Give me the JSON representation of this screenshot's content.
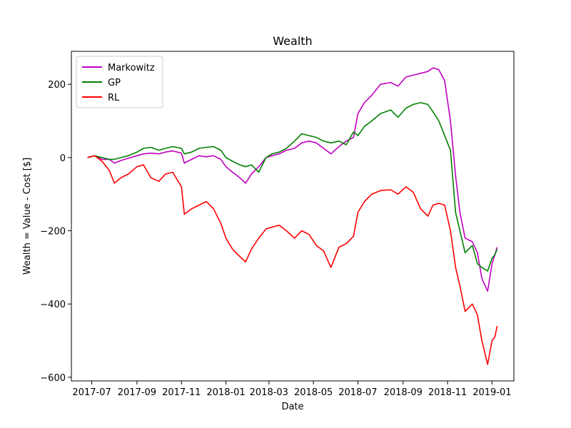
{
  "chart_data": {
    "type": "line",
    "title": "Wealth",
    "xlabel": "Date",
    "ylabel": "Wealth = Value - Cost [$]",
    "x_tick_labels": [
      "2017-07",
      "2017-09",
      "2017-11",
      "2018-01",
      "2018-03",
      "2018-05",
      "2018-07",
      "2018-09",
      "2018-11",
      "2019-01"
    ],
    "y_ticks": [
      200,
      0,
      -200,
      -400,
      -600
    ],
    "y_tick_labels": [
      "200",
      "0",
      "−200",
      "−400",
      "−600"
    ],
    "xlim": [
      "2017-06-03",
      "2019-01-31"
    ],
    "ylim": [
      -610,
      290
    ],
    "legend_position": "top-left",
    "series": [
      {
        "name": "Markowitz",
        "color": "#bf00bf",
        "points": [
          [
            "2017-06-25",
            0
          ],
          [
            "2017-07-05",
            5
          ],
          [
            "2017-07-15",
            -5
          ],
          [
            "2017-07-25",
            -5
          ],
          [
            "2017-08-01",
            -15
          ],
          [
            "2017-08-10",
            -8
          ],
          [
            "2017-08-20",
            -2
          ],
          [
            "2017-09-01",
            5
          ],
          [
            "2017-09-10",
            10
          ],
          [
            "2017-09-20",
            12
          ],
          [
            "2017-10-01",
            10
          ],
          [
            "2017-10-10",
            15
          ],
          [
            "2017-10-20",
            18
          ],
          [
            "2017-11-01",
            12
          ],
          [
            "2017-11-05",
            -15
          ],
          [
            "2017-11-15",
            -5
          ],
          [
            "2017-11-25",
            5
          ],
          [
            "2017-12-05",
            2
          ],
          [
            "2017-12-15",
            5
          ],
          [
            "2017-12-25",
            -5
          ],
          [
            "2018-01-01",
            -25
          ],
          [
            "2018-01-10",
            -40
          ],
          [
            "2018-01-20",
            -55
          ],
          [
            "2018-01-28",
            -70
          ],
          [
            "2018-02-05",
            -45
          ],
          [
            "2018-02-15",
            -25
          ],
          [
            "2018-02-25",
            0
          ],
          [
            "2018-03-05",
            5
          ],
          [
            "2018-03-15",
            10
          ],
          [
            "2018-03-25",
            20
          ],
          [
            "2018-04-05",
            25
          ],
          [
            "2018-04-15",
            40
          ],
          [
            "2018-04-25",
            45
          ],
          [
            "2018-05-05",
            40
          ],
          [
            "2018-05-15",
            25
          ],
          [
            "2018-05-25",
            10
          ],
          [
            "2018-06-05",
            30
          ],
          [
            "2018-06-15",
            45
          ],
          [
            "2018-06-25",
            55
          ],
          [
            "2018-07-01",
            120
          ],
          [
            "2018-07-10",
            150
          ],
          [
            "2018-07-20",
            170
          ],
          [
            "2018-08-01",
            200
          ],
          [
            "2018-08-15",
            205
          ],
          [
            "2018-08-25",
            195
          ],
          [
            "2018-09-05",
            220
          ],
          [
            "2018-09-15",
            225
          ],
          [
            "2018-09-25",
            230
          ],
          [
            "2018-10-05",
            235
          ],
          [
            "2018-10-12",
            245
          ],
          [
            "2018-10-20",
            240
          ],
          [
            "2018-10-28",
            210
          ],
          [
            "2018-11-05",
            100
          ],
          [
            "2018-11-12",
            -50
          ],
          [
            "2018-11-18",
            -150
          ],
          [
            "2018-11-25",
            -220
          ],
          [
            "2018-12-05",
            -230
          ],
          [
            "2018-12-12",
            -260
          ],
          [
            "2018-12-18",
            -330
          ],
          [
            "2018-12-26",
            -365
          ],
          [
            "2019-01-01",
            -290
          ],
          [
            "2019-01-05",
            -265
          ],
          [
            "2019-01-08",
            -245
          ]
        ]
      },
      {
        "name": "GP",
        "color": "#008000",
        "points": [
          [
            "2017-06-25",
            0
          ],
          [
            "2017-07-05",
            5
          ],
          [
            "2017-07-15",
            0
          ],
          [
            "2017-07-25",
            -5
          ],
          [
            "2017-08-01",
            -5
          ],
          [
            "2017-08-10",
            0
          ],
          [
            "2017-08-20",
            5
          ],
          [
            "2017-09-01",
            15
          ],
          [
            "2017-09-10",
            25
          ],
          [
            "2017-09-20",
            28
          ],
          [
            "2017-10-01",
            20
          ],
          [
            "2017-10-10",
            25
          ],
          [
            "2017-10-20",
            30
          ],
          [
            "2017-11-01",
            25
          ],
          [
            "2017-11-05",
            10
          ],
          [
            "2017-11-15",
            15
          ],
          [
            "2017-11-25",
            25
          ],
          [
            "2017-12-05",
            28
          ],
          [
            "2017-12-15",
            30
          ],
          [
            "2017-12-25",
            20
          ],
          [
            "2018-01-01",
            0
          ],
          [
            "2018-01-10",
            -10
          ],
          [
            "2018-01-20",
            -20
          ],
          [
            "2018-01-28",
            -25
          ],
          [
            "2018-02-05",
            -20
          ],
          [
            "2018-02-15",
            -40
          ],
          [
            "2018-02-25",
            0
          ],
          [
            "2018-03-05",
            10
          ],
          [
            "2018-03-15",
            15
          ],
          [
            "2018-03-25",
            25
          ],
          [
            "2018-04-05",
            45
          ],
          [
            "2018-04-15",
            65
          ],
          [
            "2018-04-25",
            60
          ],
          [
            "2018-05-05",
            55
          ],
          [
            "2018-05-15",
            45
          ],
          [
            "2018-05-25",
            40
          ],
          [
            "2018-06-05",
            45
          ],
          [
            "2018-06-15",
            35
          ],
          [
            "2018-06-25",
            70
          ],
          [
            "2018-07-01",
            60
          ],
          [
            "2018-07-10",
            85
          ],
          [
            "2018-07-20",
            100
          ],
          [
            "2018-08-01",
            120
          ],
          [
            "2018-08-15",
            130
          ],
          [
            "2018-08-25",
            110
          ],
          [
            "2018-09-05",
            135
          ],
          [
            "2018-09-15",
            145
          ],
          [
            "2018-09-25",
            150
          ],
          [
            "2018-10-05",
            145
          ],
          [
            "2018-10-12",
            125
          ],
          [
            "2018-10-20",
            100
          ],
          [
            "2018-10-28",
            60
          ],
          [
            "2018-11-05",
            20
          ],
          [
            "2018-11-12",
            -150
          ],
          [
            "2018-11-18",
            -200
          ],
          [
            "2018-11-25",
            -260
          ],
          [
            "2018-12-05",
            -240
          ],
          [
            "2018-12-12",
            -290
          ],
          [
            "2018-12-18",
            -300
          ],
          [
            "2018-12-26",
            -310
          ],
          [
            "2019-01-01",
            -275
          ],
          [
            "2019-01-05",
            -265
          ],
          [
            "2019-01-08",
            -250
          ]
        ]
      },
      {
        "name": "RL",
        "color": "#ff0000",
        "points": [
          [
            "2017-06-25",
            0
          ],
          [
            "2017-07-05",
            5
          ],
          [
            "2017-07-15",
            -10
          ],
          [
            "2017-07-25",
            -35
          ],
          [
            "2017-08-01",
            -70
          ],
          [
            "2017-08-10",
            -55
          ],
          [
            "2017-08-20",
            -45
          ],
          [
            "2017-09-01",
            -25
          ],
          [
            "2017-09-10",
            -20
          ],
          [
            "2017-09-20",
            -55
          ],
          [
            "2017-10-01",
            -65
          ],
          [
            "2017-10-10",
            -45
          ],
          [
            "2017-10-20",
            -40
          ],
          [
            "2017-11-01",
            -80
          ],
          [
            "2017-11-05",
            -155
          ],
          [
            "2017-11-15",
            -140
          ],
          [
            "2017-11-25",
            -130
          ],
          [
            "2017-12-05",
            -120
          ],
          [
            "2017-12-15",
            -140
          ],
          [
            "2017-12-25",
            -180
          ],
          [
            "2018-01-01",
            -220
          ],
          [
            "2018-01-10",
            -250
          ],
          [
            "2018-01-20",
            -270
          ],
          [
            "2018-01-28",
            -285
          ],
          [
            "2018-02-05",
            -250
          ],
          [
            "2018-02-15",
            -220
          ],
          [
            "2018-02-25",
            -195
          ],
          [
            "2018-03-05",
            -190
          ],
          [
            "2018-03-15",
            -185
          ],
          [
            "2018-03-25",
            -200
          ],
          [
            "2018-04-05",
            -220
          ],
          [
            "2018-04-15",
            -200
          ],
          [
            "2018-04-25",
            -210
          ],
          [
            "2018-05-05",
            -240
          ],
          [
            "2018-05-15",
            -255
          ],
          [
            "2018-05-25",
            -300
          ],
          [
            "2018-06-05",
            -245
          ],
          [
            "2018-06-15",
            -235
          ],
          [
            "2018-06-25",
            -215
          ],
          [
            "2018-07-01",
            -150
          ],
          [
            "2018-07-10",
            -120
          ],
          [
            "2018-07-20",
            -100
          ],
          [
            "2018-08-01",
            -90
          ],
          [
            "2018-08-15",
            -88
          ],
          [
            "2018-08-25",
            -100
          ],
          [
            "2018-09-05",
            -80
          ],
          [
            "2018-09-15",
            -95
          ],
          [
            "2018-09-25",
            -140
          ],
          [
            "2018-10-05",
            -160
          ],
          [
            "2018-10-12",
            -130
          ],
          [
            "2018-10-20",
            -125
          ],
          [
            "2018-10-28",
            -130
          ],
          [
            "2018-11-05",
            -200
          ],
          [
            "2018-11-12",
            -300
          ],
          [
            "2018-11-18",
            -350
          ],
          [
            "2018-11-25",
            -420
          ],
          [
            "2018-12-05",
            -400
          ],
          [
            "2018-12-12",
            -430
          ],
          [
            "2018-12-18",
            -500
          ],
          [
            "2018-12-26",
            -565
          ],
          [
            "2019-01-01",
            -500
          ],
          [
            "2019-01-05",
            -490
          ],
          [
            "2019-01-08",
            -460
          ]
        ]
      }
    ]
  }
}
